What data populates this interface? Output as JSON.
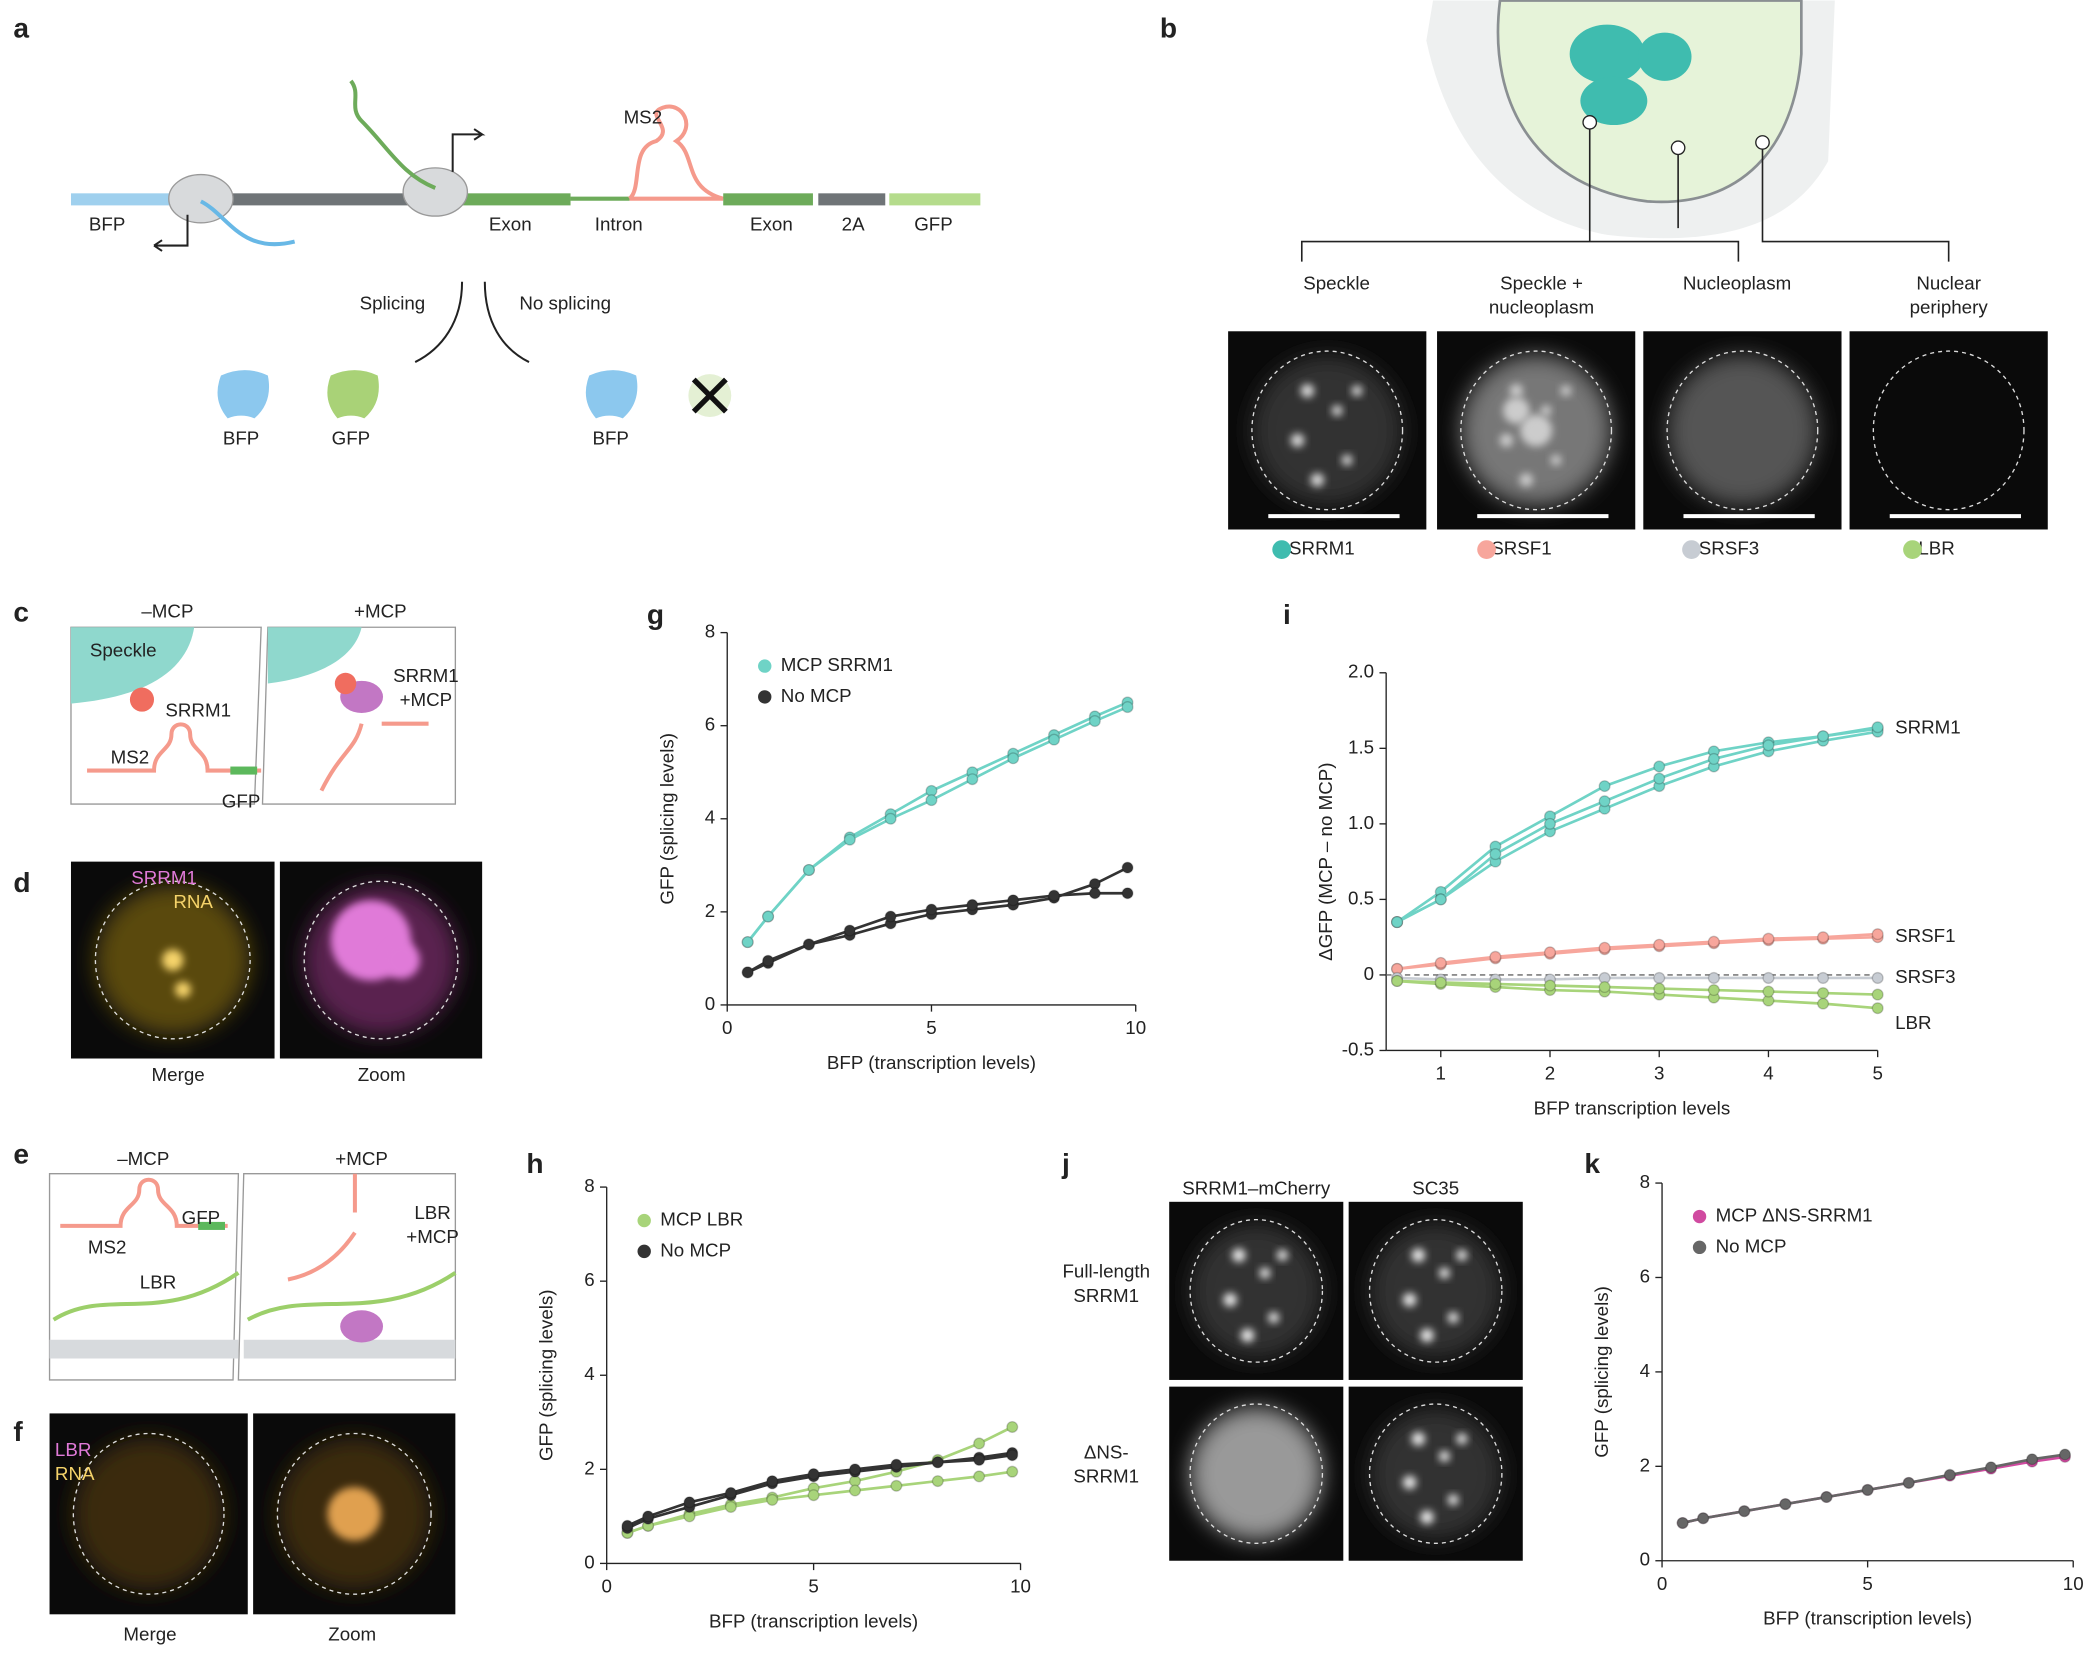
{
  "diagram": {
    "letters": [
      "a",
      "b",
      "c",
      "d",
      "e",
      "f",
      "g",
      "h",
      "i",
      "j",
      "k"
    ],
    "a": [
      "BFP",
      "Exon",
      "MS2",
      "Intron",
      "Exon",
      "2A",
      "GFP",
      "Splicing",
      "No splicing",
      "BFP",
      "GFP",
      "BFP"
    ],
    "b": [
      "Speckle",
      "Speckle +",
      "nucleoplasm",
      "Nucleoplasm",
      "Nuclear",
      "periphery",
      "SRRM1",
      "SRSF1",
      "SRSF3",
      "LBR"
    ],
    "c": [
      "–MCP",
      "+MCP",
      "Speckle",
      "SRRM1",
      "MS2",
      "GFP",
      "SRRM1",
      "+MCP"
    ],
    "d": [
      "SRRM1",
      "RNA",
      "Merge",
      "Zoom"
    ],
    "e": [
      "–MCP",
      "+MCP",
      "MS2",
      "GFP",
      "LBR",
      "LBR",
      "+MCP"
    ],
    "f": [
      "LBR",
      "RNA",
      "Merge",
      "Zoom"
    ],
    "j": [
      "SRRM1–mCherry",
      "SC35",
      "Full-length",
      "SRRM1",
      "ΔNS-",
      "SRRM1"
    ]
  },
  "chart_data": [
    {
      "type": "line",
      "x_label": "BFP (transcription levels)",
      "y_label": "GFP (splicing levels)",
      "legend": "upper left",
      "x": [
        0.5,
        1,
        2,
        3,
        4,
        5,
        6,
        7,
        8,
        9,
        9.8
      ],
      "xlim": [
        0,
        10
      ],
      "xticks": [
        0,
        5,
        10
      ],
      "ylim": [
        0,
        8
      ],
      "yticks": [
        0,
        2,
        4,
        6,
        8
      ],
      "series": [
        {
          "name": "MCP SRRM1",
          "color": "#6fd3c6",
          "replicates": [
            [
              1.35,
              1.9,
              2.9,
              3.6,
              4.1,
              4.6,
              5.0,
              5.4,
              5.8,
              6.2,
              6.5
            ],
            [
              1.35,
              1.9,
              2.9,
              3.55,
              4.0,
              4.4,
              4.85,
              5.3,
              5.7,
              6.1,
              6.4
            ]
          ]
        },
        {
          "name": "No MCP",
          "color": "#333333",
          "replicates": [
            [
              0.7,
              0.9,
              1.3,
              1.5,
              1.75,
              1.95,
              2.05,
              2.15,
              2.3,
              2.6,
              2.95
            ],
            [
              0.7,
              0.95,
              1.3,
              1.6,
              1.9,
              2.05,
              2.15,
              2.25,
              2.35,
              2.4,
              2.4
            ]
          ]
        }
      ]
    },
    {
      "type": "line",
      "x_label": "BFP (transcription levels)",
      "y_label": "GFP (splicing levels)",
      "legend": "upper left",
      "x": [
        0.5,
        1,
        2,
        3,
        4,
        5,
        6,
        7,
        8,
        9,
        9.8
      ],
      "xlim": [
        0,
        10
      ],
      "xticks": [
        0,
        5,
        10
      ],
      "ylim": [
        0,
        8
      ],
      "yticks": [
        0,
        2,
        4,
        6,
        8
      ],
      "series": [
        {
          "name": "MCP LBR",
          "color": "#a8d47a",
          "replicates": [
            [
              0.65,
              0.8,
              1.05,
              1.25,
              1.4,
              1.6,
              1.75,
              1.95,
              2.2,
              2.55,
              2.9
            ],
            [
              0.65,
              0.8,
              1.0,
              1.2,
              1.35,
              1.45,
              1.55,
              1.65,
              1.75,
              1.85,
              1.95
            ]
          ]
        },
        {
          "name": "No MCP",
          "color": "#333333",
          "replicates": [
            [
              0.75,
              0.95,
              1.2,
              1.45,
              1.7,
              1.85,
              1.95,
              2.05,
              2.15,
              2.25,
              2.35
            ],
            [
              0.8,
              1.0,
              1.3,
              1.5,
              1.75,
              1.9,
              2.0,
              2.1,
              2.15,
              2.2,
              2.3
            ]
          ]
        }
      ]
    },
    {
      "type": "line",
      "x_label": "BFP transcription levels",
      "y_label": "ΔGFP (MCP – no MCP)",
      "legend": "end",
      "zero_line": true,
      "x": [
        0.6,
        1,
        1.5,
        2,
        2.5,
        3,
        3.5,
        4,
        4.5,
        5
      ],
      "xlim": [
        0.5,
        5
      ],
      "xticks": [
        1,
        2,
        3,
        4,
        5
      ],
      "ylim": [
        -0.5,
        2.0
      ],
      "yticks": [
        -0.5,
        0,
        0.5,
        {
          "value": 1,
          "label": "1.0"
        },
        1.5,
        {
          "value": 2,
          "label": "2.0"
        }
      ],
      "series": [
        {
          "name": "SRRM1",
          "color": "#6fd3c6",
          "replicates": [
            [
              0.35,
              0.55,
              0.85,
              1.05,
              1.25,
              1.38,
              1.48,
              1.54,
              1.58,
              1.63
            ],
            [
              0.35,
              0.5,
              0.75,
              0.95,
              1.1,
              1.25,
              1.38,
              1.48,
              1.55,
              1.61
            ],
            [
              0.35,
              0.5,
              0.8,
              1.0,
              1.15,
              1.3,
              1.43,
              1.52,
              1.58,
              1.64
            ]
          ]
        },
        {
          "name": "SRSF1",
          "color": "#f7a69c",
          "replicates": [
            [
              0.04,
              0.07,
              0.11,
              0.14,
              0.17,
              0.19,
              0.21,
              0.23,
              0.24,
              0.25
            ],
            [
              0.04,
              0.08,
              0.12,
              0.15,
              0.18,
              0.2,
              0.22,
              0.24,
              0.25,
              0.27
            ]
          ]
        },
        {
          "name": "SRSF3",
          "color": "#c7ccd3",
          "replicates": [
            [
              -0.02,
              -0.03,
              -0.03,
              -0.03,
              -0.02,
              -0.02,
              -0.02,
              -0.02,
              -0.02,
              -0.02
            ]
          ]
        },
        {
          "name": "LBR",
          "color": "#a8d47a",
          "replicates": [
            [
              -0.04,
              -0.06,
              -0.08,
              -0.1,
              -0.11,
              -0.13,
              -0.15,
              -0.17,
              -0.19,
              -0.22
            ],
            [
              -0.04,
              -0.05,
              -0.06,
              -0.07,
              -0.08,
              -0.09,
              -0.1,
              -0.11,
              -0.12,
              -0.13
            ]
          ]
        }
      ]
    },
    {
      "type": "line",
      "x_label": "BFP (transcription levels)",
      "y_label": "GFP (splicing levels)",
      "legend": "upper left",
      "x": [
        0.5,
        1,
        2,
        3,
        4,
        5,
        6,
        7,
        8,
        9,
        9.8
      ],
      "xlim": [
        0,
        10
      ],
      "xticks": [
        0,
        5,
        10
      ],
      "ylim": [
        0,
        8
      ],
      "yticks": [
        0,
        2,
        4,
        6,
        8
      ],
      "series": [
        {
          "name": "MCP ΔNS-SRRM1",
          "color": "#d04aa0",
          "replicates": [
            [
              0.8,
              0.9,
              1.05,
              1.2,
              1.35,
              1.5,
              1.65,
              1.8,
              1.95,
              2.1,
              2.2
            ]
          ]
        },
        {
          "name": "No MCP",
          "color": "#666666",
          "replicates": [
            [
              0.8,
              0.9,
              1.05,
              1.2,
              1.35,
              1.5,
              1.65,
              1.82,
              1.98,
              2.15,
              2.25
            ]
          ]
        }
      ]
    }
  ]
}
